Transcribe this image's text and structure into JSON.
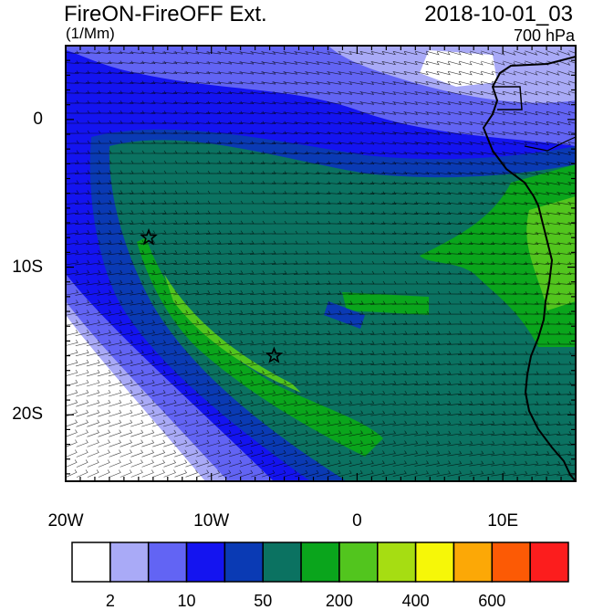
{
  "header": {
    "title": "FireON-FireOFF Ext.",
    "units": "(1/Mm)",
    "timestamp": "2018-10-01_03",
    "level": "700 hPa"
  },
  "axes": {
    "x_ticks": [
      {
        "lon": -20,
        "label": "20W"
      },
      {
        "lon": -10,
        "label": "10W"
      },
      {
        "lon": 0,
        "label": "0"
      },
      {
        "lon": 10,
        "label": "10E"
      }
    ],
    "y_ticks": [
      {
        "lat": 0,
        "label": "0"
      },
      {
        "lat": -10,
        "label": "10S"
      },
      {
        "lat": -20,
        "label": "20S"
      }
    ],
    "lon_range": [
      -20,
      15
    ],
    "lat_range": [
      -24.5,
      5
    ]
  },
  "colorbar": {
    "colors": [
      "#ffffff",
      "#a9aaf7",
      "#6264f4",
      "#1414f0",
      "#0a3ab4",
      "#0b7261",
      "#0aa51c",
      "#52c51e",
      "#a6dd12",
      "#f6f708",
      "#fca806",
      "#fc5a05",
      "#fc1d1d"
    ],
    "labels": [
      {
        "text": "2",
        "boundary": 1
      },
      {
        "text": "10",
        "boundary": 3
      },
      {
        "text": "50",
        "boundary": 5
      },
      {
        "text": "200",
        "boundary": 7
      },
      {
        "text": "400",
        "boundary": 9
      },
      {
        "text": "600",
        "boundary": 11
      }
    ]
  },
  "markers": [
    {
      "name": "star-marker",
      "lon": -14.3,
      "lat": -8.0
    },
    {
      "name": "star-marker",
      "lon": -5.7,
      "lat": -16.0
    }
  ]
}
